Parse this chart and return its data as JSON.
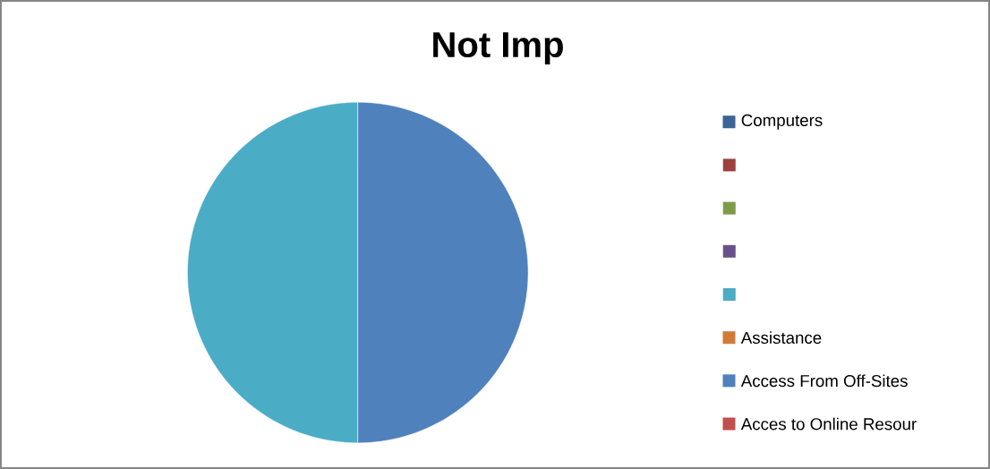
{
  "chart_data": {
    "type": "pie",
    "title": "Not Imp",
    "categories": [
      "Computers",
      null,
      null,
      null,
      null,
      "Assistance",
      "Access From Off-Sites",
      "Acces to Online Resour"
    ],
    "values": [
      0,
      0,
      0,
      0,
      50,
      0,
      50,
      0
    ],
    "colors": [
      "#3c6497",
      "#9e413e",
      "#7f9b48",
      "#68518b",
      "#4bacc6",
      "#d27b38",
      "#4f81bd",
      "#c0504d"
    ],
    "legend": "right"
  }
}
